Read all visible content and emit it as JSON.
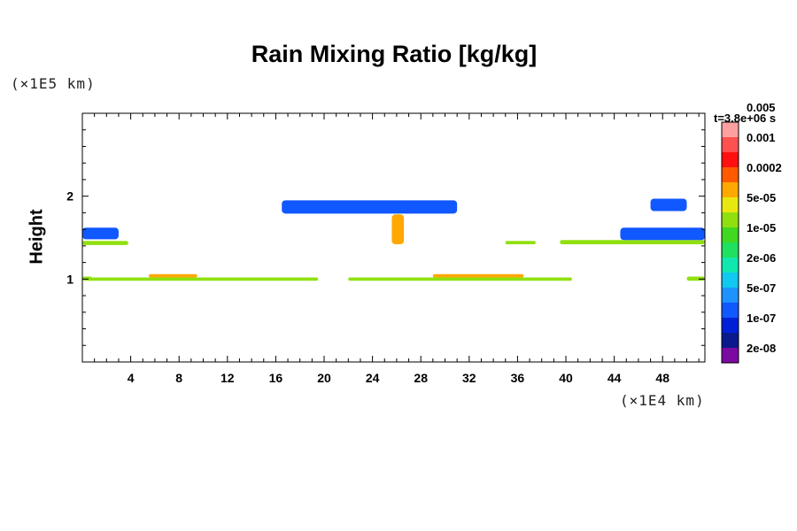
{
  "chart_data": {
    "type": "heatmap",
    "title": "Rain Mixing Ratio [kg/kg]",
    "xlabel": "",
    "ylabel": "Height",
    "x_unit": "(×1E4 km)",
    "y_unit": "(×1E5 km)",
    "timestamp": "t=3.8e+06 s",
    "xlim": [
      0,
      51.5
    ],
    "ylim": [
      0,
      3
    ],
    "x_ticks": [
      4,
      8,
      12,
      16,
      20,
      24,
      28,
      32,
      36,
      40,
      44,
      48
    ],
    "y_ticks": [
      1,
      2
    ],
    "x_minor_step": 1,
    "y_minor_step": 0.2,
    "colorbar": {
      "levels": [
        "2e-08",
        "1e-07",
        "5e-07",
        "2e-06",
        "1e-05",
        "5e-05",
        "0.0002",
        "0.001",
        "0.005"
      ],
      "colors": [
        "#7a0aa0",
        "#0a1a8c",
        "#0020d8",
        "#1058ff",
        "#1e92ff",
        "#10c8f0",
        "#10e8b0",
        "#20e060",
        "#40d820",
        "#90e010",
        "#e8e810",
        "#ffa800",
        "#ff5a00",
        "#ff1010",
        "#ff5050",
        "#ffa0a0"
      ]
    },
    "features": [
      {
        "name": "lower-layer-main",
        "x": [
          0.5,
          19.5
        ],
        "y": [
          0.98,
          1.02
        ],
        "level": "1e-05"
      },
      {
        "name": "lower-layer-east",
        "x": [
          22,
          40.5
        ],
        "y": [
          0.98,
          1.02
        ],
        "level": "1e-05"
      },
      {
        "name": "lower-layer-bump-1",
        "x": [
          5.5,
          9.5
        ],
        "y": [
          1.02,
          1.06
        ],
        "level": "5e-05"
      },
      {
        "name": "lower-layer-bump-2",
        "x": [
          29,
          36.5
        ],
        "y": [
          1.02,
          1.06
        ],
        "level": "5e-05"
      },
      {
        "name": "lower-layer-edge-west",
        "x": [
          0,
          0.8
        ],
        "y": [
          0.98,
          1.03
        ],
        "level": "1e-05"
      },
      {
        "name": "lower-layer-edge-east",
        "x": [
          50,
          51.5
        ],
        "y": [
          0.98,
          1.03
        ],
        "level": "1e-05"
      },
      {
        "name": "mid-layer-west",
        "x": [
          0,
          3.8
        ],
        "y": [
          1.41,
          1.46
        ],
        "level": "1e-05"
      },
      {
        "name": "mid-layer-center",
        "x": [
          35,
          37.5
        ],
        "y": [
          1.42,
          1.46
        ],
        "level": "1e-05"
      },
      {
        "name": "mid-layer-east",
        "x": [
          39.5,
          51.5
        ],
        "y": [
          1.42,
          1.47
        ],
        "level": "1e-05"
      },
      {
        "name": "cloud-west",
        "x": [
          0,
          3
        ],
        "y": [
          1.48,
          1.62
        ],
        "level": "1e-07"
      },
      {
        "name": "cloud-east",
        "x": [
          44.5,
          51.5
        ],
        "y": [
          1.47,
          1.62
        ],
        "level": "1e-07"
      },
      {
        "name": "upper-layer-center",
        "x": [
          16.5,
          31
        ],
        "y": [
          1.79,
          1.95
        ],
        "level": "1e-07"
      },
      {
        "name": "upper-layer-east",
        "x": [
          47,
          50
        ],
        "y": [
          1.82,
          1.97
        ],
        "level": "1e-07"
      },
      {
        "name": "convective-column",
        "x": [
          25.6,
          26.6
        ],
        "y": [
          1.42,
          1.78
        ],
        "level": "5e-05"
      }
    ]
  }
}
